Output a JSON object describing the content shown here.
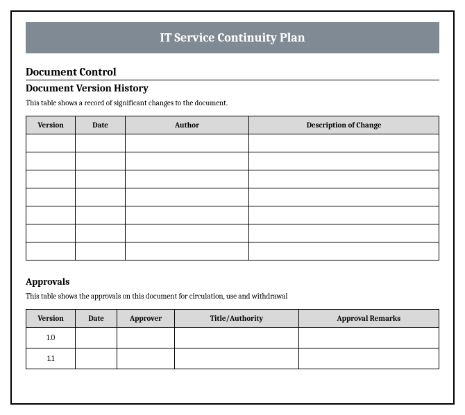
{
  "title_banner": {
    "text": "IT Service Continuity Plan",
    "background_color": "#808a94",
    "text_color": "#ffffff",
    "fontsize": 18
  },
  "document_control": {
    "heading": "Document Control"
  },
  "version_history": {
    "heading": "Document Version History",
    "description": "This table shows a record of significant changes to the document.",
    "columns": [
      "Version",
      "Date",
      "Author",
      "Description of Change"
    ],
    "column_widths_pct": [
      12,
      12,
      30,
      46
    ],
    "header_bg_color": "#d9d9d9",
    "rows": [
      [
        "",
        "",
        "",
        ""
      ],
      [
        "",
        "",
        "",
        ""
      ],
      [
        "",
        "",
        "",
        ""
      ],
      [
        "",
        "",
        "",
        ""
      ],
      [
        "",
        "",
        "",
        ""
      ],
      [
        "",
        "",
        "",
        ""
      ],
      [
        "",
        "",
        "",
        ""
      ]
    ]
  },
  "approvals": {
    "heading": "Approvals",
    "description": "This table shows the approvals on this document for circulation, use and withdrawal",
    "columns": [
      "Version",
      "Date",
      "Approver",
      "Title/Authority",
      "Approval Remarks"
    ],
    "column_widths_pct": [
      12,
      10,
      14,
      30,
      34
    ],
    "header_bg_color": "#d9d9d9",
    "rows": [
      [
        "1.0",
        "",
        "",
        "",
        ""
      ],
      [
        "1.1",
        "",
        "",
        "",
        ""
      ]
    ]
  },
  "styling": {
    "page_border_color": "#000000",
    "page_background": "#ffffff",
    "font_family": "Cambria, Georgia, serif",
    "heading_fontsize": 16,
    "subheading_fontsize": 15,
    "description_fontsize": 11,
    "table_header_fontsize": 11,
    "table_cell_fontsize": 11
  }
}
